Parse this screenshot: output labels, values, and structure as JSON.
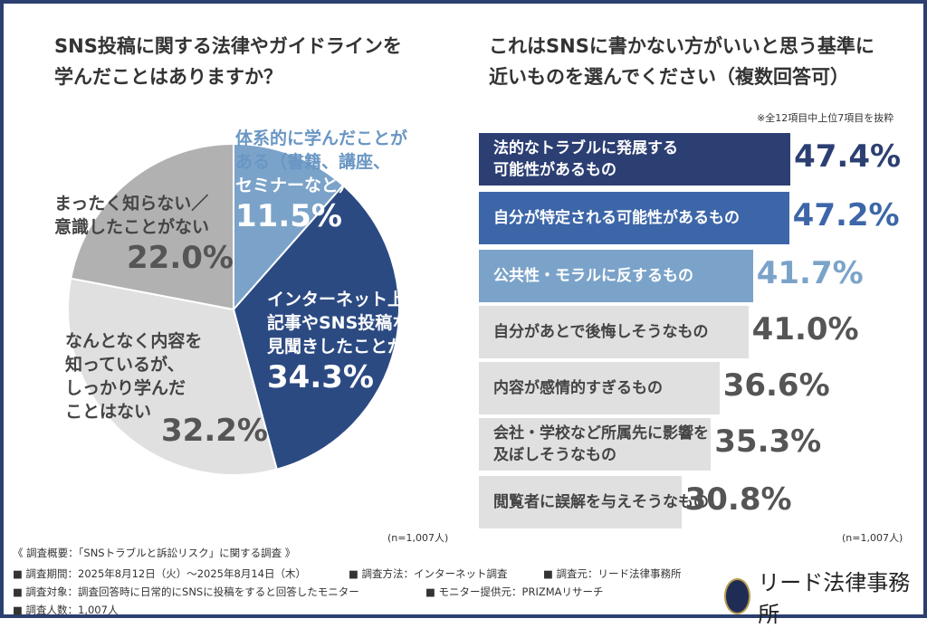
{
  "colors": {
    "navy": "#2c3f73",
    "blue": "#3d66a8",
    "light_blue": "#7ba3c9",
    "gray": "#b1b1b1",
    "light_gray": "#e0e0e0",
    "frame": "#2b3f70"
  },
  "chart_data": [
    {
      "type": "pie",
      "title": "SNS投稿に関する法律やガイドラインを学んだことはありますか？",
      "title_lines": [
        "SNS投稿に関する法律やガイドラインを",
        "学んだことはありますか？"
      ],
      "slices": [
        {
          "label": "体系的に学んだことがある（書籍、講座、セミナーなど）",
          "label_lines": [
            "体系的に学んだことが",
            "ある（書籍、講座、",
            "セミナーなど）"
          ],
          "value": 11.5,
          "display": "11.5%",
          "color": "#7ba3c9"
        },
        {
          "label": "インターネット上の記事やSNS投稿などで見聞きしたことがある",
          "label_lines": [
            "インターネット上の",
            "記事やSNS投稿などで",
            "見聞きしたことがある"
          ],
          "value": 34.3,
          "display": "34.3%",
          "color": "#2c4a82"
        },
        {
          "label": "なんとなく内容を知っているが、しっかり学んだことはない",
          "label_lines": [
            "なんとなく内容を",
            "知っているが、",
            "しっかり学んだ",
            "ことはない"
          ],
          "value": 32.2,
          "display": "32.2%",
          "color": "#e0e0e0"
        },
        {
          "label": "まったく知らない／意識したことがない",
          "label_lines": [
            "まったく知らない／",
            "意識したことがない"
          ],
          "value": 22.0,
          "display": "22.0%",
          "color": "#b1b1b1"
        }
      ],
      "n": "(n=1,007人)"
    },
    {
      "type": "bar",
      "orientation": "horizontal",
      "title": "これはSNSに書かない方がいいと思う基準に近いものを選んでください（複数回答可）",
      "title_lines": [
        "これはSNSに書かない方がいいと思う基準に",
        "近いものを選んでください（複数回答可）"
      ],
      "note": "※全12項目中上位7項目を抜粋",
      "categories": [
        "法的なトラブルに発展する可能性があるもの",
        "自分が特定される可能性があるもの",
        "公共性・モラルに反するもの",
        "自分があとで後悔しそうなもの",
        "内容が感情的すぎるもの",
        "会社・学校など所属先に影響を及ぼしそうなもの",
        "閲覧者に誤解を与えそうなもの"
      ],
      "category_lines": [
        [
          "法的なトラブルに発展する",
          "可能性があるもの"
        ],
        [
          "自分が特定される可能性があるもの"
        ],
        [
          "公共性・モラルに反するもの"
        ],
        [
          "自分があとで後悔しそうなもの"
        ],
        [
          "内容が感情的すぎるもの"
        ],
        [
          "会社・学校など所属先に影響を",
          "及ぼしそうなもの"
        ],
        [
          "閲覧者に誤解を与えそうなもの"
        ]
      ],
      "values": [
        47.4,
        47.2,
        41.7,
        41.0,
        36.6,
        35.3,
        30.8
      ],
      "display": [
        "47.4%",
        "47.2%",
        "41.7%",
        "41.0%",
        "36.6%",
        "35.3%",
        "30.8%"
      ],
      "unit": "%",
      "n": "(n=1,007人)"
    }
  ],
  "footer": {
    "heading": "《 調査概要：「SNSトラブルと訴訟リスク」に関する調査 》",
    "period": "■ 調査期間：2025年8月12日（火）〜2025年8月14日（木）",
    "method": "■ 調査方法：インターネット調査",
    "source": "■ 調査元：リード法律事務所",
    "target": "■ 調査対象：調査回答時に日常的にSNSに投稿をすると回答したモニター",
    "provider": "■ モニター提供元：PRIZMAリサーチ",
    "count": "■ 調査人数：1,007人"
  },
  "logo": {
    "mark": "LL",
    "name": "リード法律事務所"
  }
}
